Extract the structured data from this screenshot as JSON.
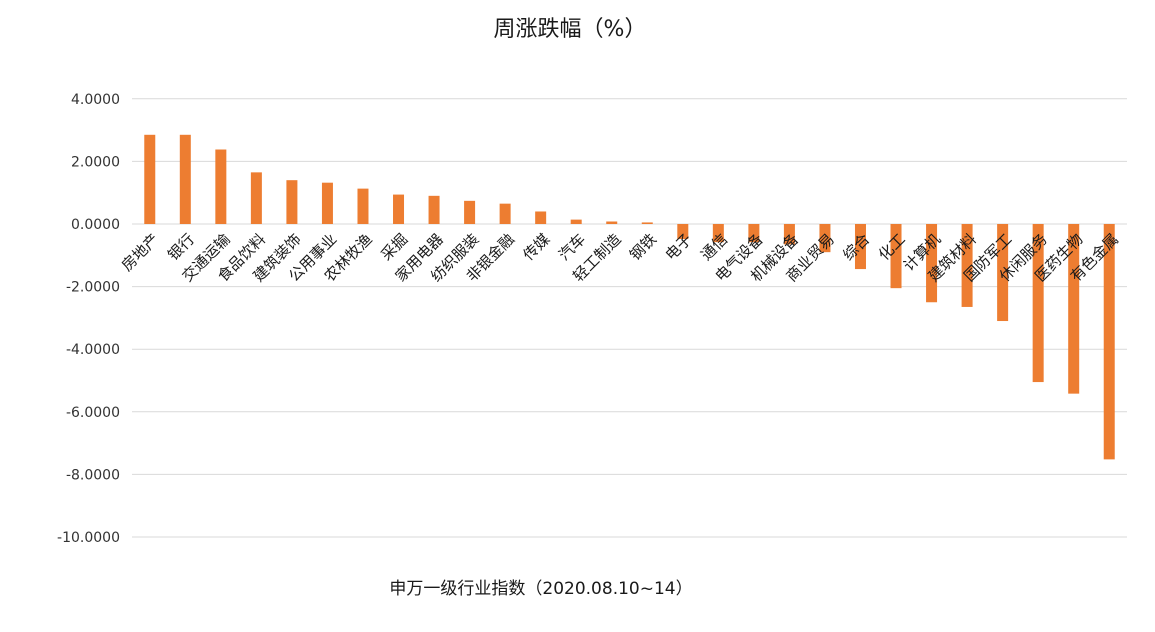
{
  "chart_data": {
    "type": "bar",
    "title": "周涨跌幅（%）",
    "xlabel": "申万一级行业指数（2020.08.10~14）",
    "ylabel": "",
    "ylim": [
      -10,
      4
    ],
    "yticks": [
      4,
      2,
      0,
      -2,
      -4,
      -6,
      -8,
      -10
    ],
    "ytick_labels": [
      "4.0000",
      "2.0000",
      "0.0000",
      "-2.0000",
      "-4.0000",
      "-6.0000",
      "-8.0000",
      "-10.0000"
    ],
    "grid": true,
    "legend": "none",
    "bar_color": "#ED7D31",
    "categories": [
      "房地产",
      "银行",
      "交通运输",
      "食品饮料",
      "建筑装饰",
      "公用事业",
      "农林牧渔",
      "采掘",
      "家用电器",
      "纺织服装",
      "非银金融",
      "传媒",
      "汽车",
      "轻工制造",
      "钢铁",
      "电子",
      "通信",
      "电气设备",
      "机械设备",
      "商业贸易",
      "综合",
      "化工",
      "计算机",
      "建筑材料",
      "国防军工",
      "休闲服务",
      "医药生物",
      "有色金属"
    ],
    "values": [
      2.85,
      2.85,
      2.38,
      1.65,
      1.4,
      1.32,
      1.13,
      0.94,
      0.9,
      0.74,
      0.65,
      0.4,
      0.14,
      0.08,
      0.05,
      -0.48,
      -0.58,
      -0.58,
      -0.65,
      -0.9,
      -1.44,
      -2.05,
      -2.5,
      -2.65,
      -3.1,
      -5.05,
      -5.42,
      -7.52
    ]
  }
}
